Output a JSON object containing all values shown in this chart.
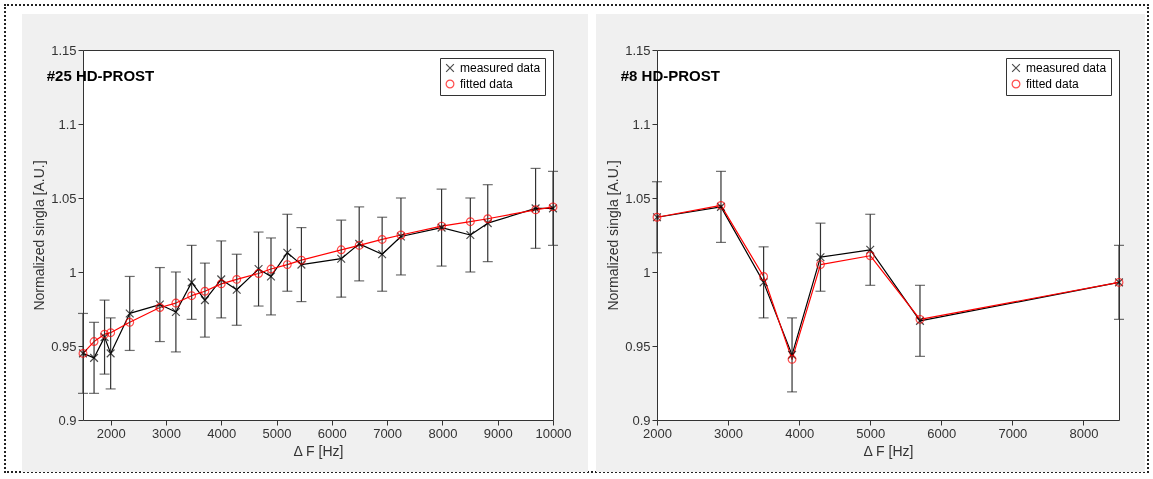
{
  "chart_data": [
    {
      "type": "line",
      "title": "#25 HD-PROST",
      "xlabel": "Δ F [Hz]",
      "ylabel": "Normalized singla [A.U.]",
      "legend": "top right",
      "grid": false,
      "x": [
        1500,
        1700,
        1890,
        2000,
        2345,
        2890,
        3180,
        3465,
        3705,
        4000,
        4280,
        4675,
        4900,
        5195,
        5450,
        6170,
        6495,
        6910,
        7250,
        7985,
        8505,
        8820,
        9685,
        10000
      ],
      "xlim": [
        1500,
        10000
      ],
      "xticks": [
        2000,
        3000,
        4000,
        5000,
        6000,
        7000,
        8000,
        9000,
        10000
      ],
      "ylim": [
        0.9,
        1.15
      ],
      "yticks": [
        0.9,
        0.95,
        1,
        1.05,
        1.1,
        1.15
      ],
      "series": [
        {
          "name": "measured data",
          "color": "#000000",
          "marker": "cross",
          "values": [
            0.945,
            0.942,
            0.956,
            0.945,
            0.972,
            0.978,
            0.973,
            0.993,
            0.981,
            0.995,
            0.988,
            1.002,
            0.997,
            1.013,
            1.005,
            1.009,
            1.019,
            1.012,
            1.024,
            1.03,
            1.025,
            1.033,
            1.043,
            1.043
          ],
          "errors": [
            0.027,
            0.024,
            0.025,
            0.024,
            0.025,
            0.025,
            0.027,
            0.025,
            0.025,
            0.026,
            0.024,
            0.025,
            0.026,
            0.026,
            0.025,
            0.026,
            0.025,
            0.025,
            0.026,
            0.026,
            0.025,
            0.026,
            0.027,
            0.025
          ]
        },
        {
          "name": "fitted data",
          "color": "#ff0000",
          "marker": "circle",
          "values": [
            0.945,
            0.953,
            0.958,
            0.959,
            0.966,
            0.976,
            0.979,
            0.984,
            0.987,
            0.992,
            0.995,
            0.999,
            1.002,
            1.005,
            1.008,
            1.015,
            1.018,
            1.022,
            1.025,
            1.031,
            1.034,
            1.036,
            1.042,
            1.044
          ]
        }
      ]
    },
    {
      "type": "line",
      "title": "#8 HD-PROST",
      "xlabel": "Δ F [Hz]",
      "ylabel": "Normalized singla [A.U.]",
      "legend": "top right",
      "grid": false,
      "x": [
        2000,
        2900,
        3500,
        3900,
        4300,
        5000,
        5700,
        8500
      ],
      "xlim": [
        2000,
        8500
      ],
      "xticks": [
        2000,
        3000,
        4000,
        5000,
        6000,
        7000,
        8000
      ],
      "ylim": [
        0.9,
        1.15
      ],
      "yticks": [
        0.9,
        0.95,
        1,
        1.05,
        1.1,
        1.15
      ],
      "series": [
        {
          "name": "measured data",
          "color": "#000000",
          "marker": "cross",
          "values": [
            1.037,
            1.044,
            0.993,
            0.944,
            1.01,
            1.015,
            0.967,
            0.993
          ],
          "errors": [
            0.024,
            0.024,
            0.024,
            0.025,
            0.023,
            0.024,
            0.024,
            0.025
          ]
        },
        {
          "name": "fitted data",
          "color": "#ff0000",
          "marker": "circle",
          "values": [
            1.037,
            1.045,
            0.997,
            0.941,
            1.005,
            1.011,
            0.968,
            0.993
          ]
        }
      ]
    }
  ]
}
